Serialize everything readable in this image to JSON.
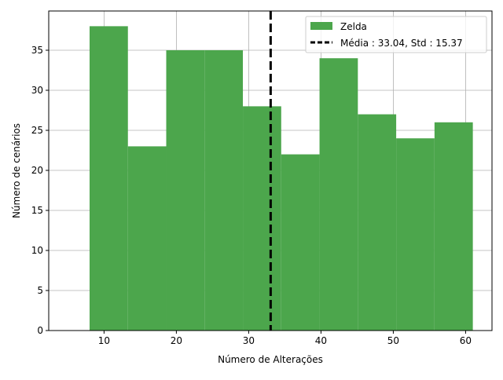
{
  "chart_data": {
    "type": "bar",
    "subtype": "histogram",
    "xlabel": "Número de Alterações",
    "ylabel": "Número de cenários",
    "xlim": [
      2.35,
      63.65
    ],
    "ylim": [
      0,
      39.9
    ],
    "xticks": [
      10,
      20,
      30,
      40,
      50,
      60
    ],
    "yticks": [
      0,
      5,
      10,
      15,
      20,
      25,
      30,
      35
    ],
    "grid": true,
    "legend_position": "top-right",
    "bins": [
      {
        "x0": 8.0,
        "x1": 13.3,
        "value": 38
      },
      {
        "x0": 13.3,
        "x1": 18.6,
        "value": 23
      },
      {
        "x0": 18.6,
        "x1": 23.9,
        "value": 35
      },
      {
        "x0": 23.9,
        "x1": 29.2,
        "value": 35
      },
      {
        "x0": 29.2,
        "x1": 34.5,
        "value": 28
      },
      {
        "x0": 34.5,
        "x1": 39.8,
        "value": 22
      },
      {
        "x0": 39.8,
        "x1": 45.1,
        "value": 34
      },
      {
        "x0": 45.1,
        "x1": 50.4,
        "value": 27
      },
      {
        "x0": 50.4,
        "x1": 55.7,
        "value": 24
      },
      {
        "x0": 55.7,
        "x1": 61.0,
        "value": 26
      }
    ],
    "series": [
      {
        "name": "Zelda",
        "color": "#4ca64c"
      }
    ],
    "mean_line": {
      "x": 33.04,
      "label": "Média : 33.04, Std : 15.37",
      "color": "#000000"
    }
  }
}
